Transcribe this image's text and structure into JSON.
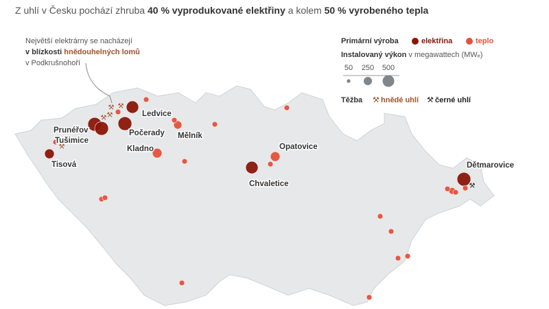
{
  "title": {
    "parts": [
      {
        "text": "Z uhlí v Česku pochází zhruba ",
        "bold": false
      },
      {
        "text": "40 % vyprodukované elektřiny",
        "bold": true
      },
      {
        "text": " a kolem ",
        "bold": false
      },
      {
        "text": "50 % vyrobeného tepla",
        "bold": true
      }
    ]
  },
  "annotation": {
    "line1": "Největší elektrárny se nacházejí",
    "line2a": "v blízkosti ",
    "line2b": "hnědouhelných lomů",
    "line3": "v Podkrušnohoří"
  },
  "legend": {
    "production": {
      "title": "Primární výroba",
      "items": [
        {
          "label": "elektřina",
          "color": "#8b1609"
        },
        {
          "label": "teplo",
          "color": "#e4513b"
        }
      ]
    },
    "capacity": {
      "title": "Instalovaný výkon",
      "unit": " v megawattech (MWₑ)",
      "sizes": [
        50,
        250,
        500
      ],
      "color": "#7f868c"
    },
    "mining": {
      "title": "Těžba",
      "items": [
        {
          "label": "hnědé uhlí",
          "color": "#a0522d"
        },
        {
          "label": "černé uhlí",
          "color": "#222222"
        }
      ]
    }
  },
  "points": [
    {
      "name": "Prunéřov",
      "type": "elektřina",
      "mw": 690
    },
    {
      "name": "Tušimice",
      "type": "elektřina",
      "mw": 690
    },
    {
      "name": "Počerady",
      "type": "elektřina",
      "mw": 690
    },
    {
      "name": "Ledvice",
      "type": "elektřina",
      "mw": 560
    },
    {
      "name": "Tisová",
      "type": "elektřina",
      "mw": 340
    },
    {
      "name": "Chvaletice",
      "type": "elektřina",
      "mw": 560
    },
    {
      "name": "Dětmarovice",
      "type": "elektřina",
      "mw": 690
    },
    {
      "name": "Mělník",
      "type": "teplo",
      "mw": 250
    },
    {
      "name": "Kladno",
      "type": "teplo",
      "mw": 340
    },
    {
      "name": "Opatovice",
      "type": "teplo",
      "mw": 340
    },
    {
      "type": "teplo",
      "mw": 110
    },
    {
      "type": "teplo",
      "mw": 110
    },
    {
      "type": "teplo",
      "mw": 110
    },
    {
      "type": "teplo",
      "mw": 110
    },
    {
      "type": "teplo",
      "mw": 110
    },
    {
      "type": "teplo",
      "mw": 110
    },
    {
      "type": "teplo",
      "mw": 110
    },
    {
      "type": "teplo",
      "mw": 110
    },
    {
      "type": "teplo",
      "mw": 110
    },
    {
      "type": "teplo",
      "mw": 170
    },
    {
      "type": "teplo",
      "mw": 110
    },
    {
      "type": "teplo",
      "mw": 110
    },
    {
      "type": "teplo",
      "mw": 110
    },
    {
      "type": "teplo",
      "mw": 110
    },
    {
      "type": "teplo",
      "mw": 110
    },
    {
      "type": "teplo",
      "mw": 110
    },
    {
      "type": "teplo",
      "mw": 110
    },
    {
      "type": "teplo",
      "mw": 110
    },
    {
      "type": "teplo",
      "mw": 110
    },
    {
      "type": "teplo",
      "mw": 110
    }
  ]
}
